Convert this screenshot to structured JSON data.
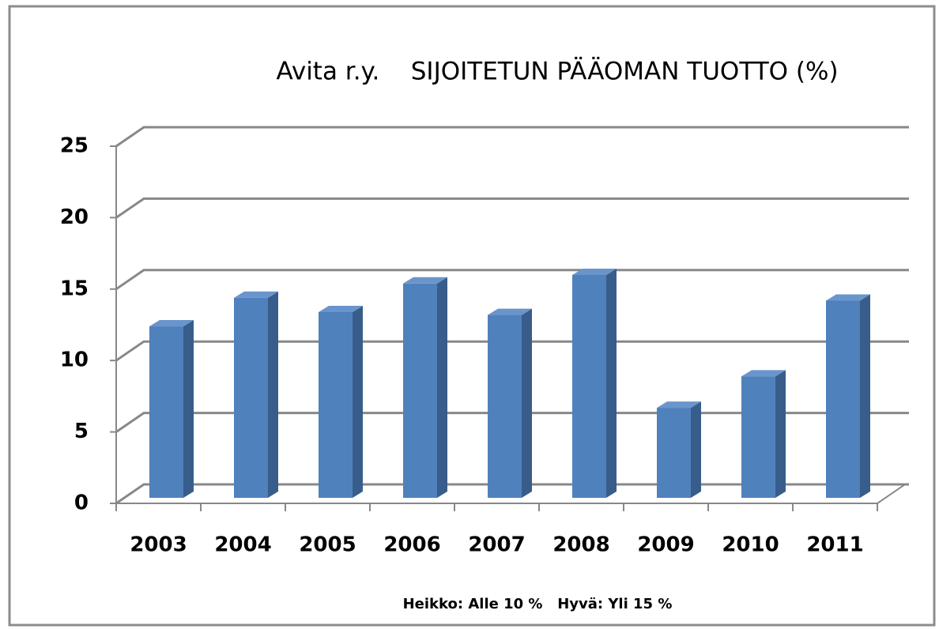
{
  "chart_data": {
    "type": "bar",
    "title": "Avita r.y.    SIJOITETUN PÄÄOMAN TUOTTO (%)",
    "annotation": "Heikko: Alle 10 %   Hyvä: Yli 15 %",
    "categories": [
      "2003",
      "2004",
      "2005",
      "2006",
      "2007",
      "2008",
      "2009",
      "2010",
      "2011"
    ],
    "values": [
      12,
      14,
      13,
      15,
      12.8,
      15.6,
      6.3,
      8.5,
      13.8
    ],
    "color": "#4f81bd",
    "ylim": [
      0,
      25
    ],
    "yticks": [
      0,
      5,
      10,
      15,
      20,
      25
    ],
    "grid": true
  }
}
